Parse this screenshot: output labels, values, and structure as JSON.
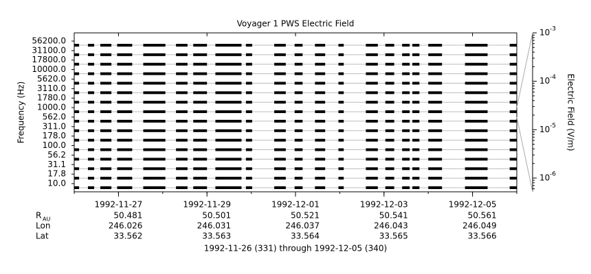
{
  "chart_data": {
    "type": "coverage",
    "title": "Voyager 1 PWS Electric Field",
    "ylabel": "Frequency (Hz)",
    "y2label": "Electric Field (V/m)",
    "footer": "1992-11-26 (331) through 1992-12-05 (340)",
    "categories": [
      "56200.0",
      "31100.0",
      "17800.0",
      "10000.0",
      "5620.0",
      "3110.0",
      "1780.0",
      "1000.0",
      "562.0",
      "311.0",
      "178.0",
      "100.0",
      "56.2",
      "31.1",
      "17.8",
      "10.0"
    ],
    "xlim": [
      331,
      341
    ],
    "xticks": [
      {
        "value": 332,
        "label": "1992-11-27"
      },
      {
        "value": 334,
        "label": "1992-11-29"
      },
      {
        "value": 336,
        "label": "1992-12-01"
      },
      {
        "value": 338,
        "label": "1992-12-03"
      },
      {
        "value": 340,
        "label": "1992-12-05"
      }
    ],
    "coverage": [
      [
        331.0,
        331.11
      ],
      [
        331.31,
        331.45
      ],
      [
        331.59,
        331.84
      ],
      [
        331.97,
        332.31
      ],
      [
        332.56,
        333.06
      ],
      [
        333.3,
        333.56
      ],
      [
        333.69,
        334.0
      ],
      [
        334.19,
        334.78
      ],
      [
        334.88,
        335.02
      ],
      [
        335.52,
        335.78
      ],
      [
        335.98,
        336.16
      ],
      [
        336.44,
        336.67
      ],
      [
        336.97,
        337.09
      ],
      [
        337.59,
        337.86
      ],
      [
        338.03,
        338.23
      ],
      [
        338.41,
        338.58
      ],
      [
        338.64,
        338.8
      ],
      [
        339.0,
        339.31
      ],
      [
        339.83,
        340.34
      ],
      [
        340.84,
        341.0
      ]
    ],
    "color": "#000000",
    "y2log": true,
    "y2lim": [
      5.2e-07,
      0.001
    ],
    "y2ticks": [
      {
        "value": 0.001,
        "label": "10",
        "exponent": "-3"
      },
      {
        "value": 0.0001,
        "label": "10",
        "exponent": "-4"
      },
      {
        "value": 1e-05,
        "label": "10",
        "exponent": "-5"
      },
      {
        "value": 1e-06,
        "label": "10",
        "exponent": "-6"
      }
    ],
    "ephemeris": [
      {
        "label": "R",
        "sub": "AU",
        "values": [
          50.481,
          50.501,
          50.521,
          50.541,
          50.561
        ]
      },
      {
        "label": "Lon",
        "values": [
          246.026,
          246.031,
          246.037,
          246.043,
          246.049
        ]
      },
      {
        "label": "Lat",
        "values": [
          33.562,
          33.563,
          33.564,
          33.565,
          33.566
        ]
      }
    ]
  }
}
